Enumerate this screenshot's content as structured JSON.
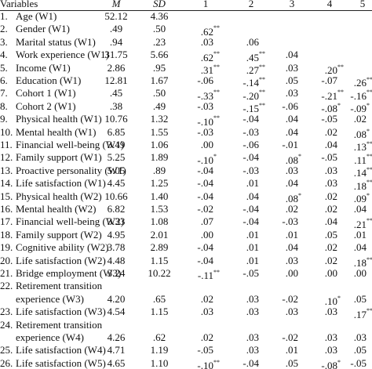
{
  "table": {
    "header": [
      "Variables",
      "M",
      "SD",
      "1",
      "2",
      "3",
      "4",
      "5"
    ],
    "rows": [
      {
        "no": "1.",
        "label": [
          "Age (W1)"
        ],
        "cells": [
          "52.12",
          "4.36"
        ],
        "corr": []
      },
      {
        "no": "2.",
        "label": [
          "Gender (W1)"
        ],
        "cells": [
          ".49",
          ".50"
        ],
        "corr": [
          {
            "v": ".62",
            "s": "**"
          }
        ]
      },
      {
        "no": "3.",
        "label": [
          "Marital status (W1)"
        ],
        "cells": [
          ".94",
          ".23"
        ],
        "corr": [
          {
            "v": ".03"
          },
          {
            "v": ".06"
          }
        ]
      },
      {
        "no": "4.",
        "label": [
          "Work experience (W1)"
        ],
        "cells": [
          "31.75",
          "5.66"
        ],
        "corr": [
          {
            "v": ".62",
            "s": "**"
          },
          {
            "v": ".45",
            "s": "**"
          },
          {
            "v": ".04"
          }
        ]
      },
      {
        "no": "5.",
        "label": [
          "Income (W1)"
        ],
        "cells": [
          "2.86",
          ".95"
        ],
        "corr": [
          {
            "v": ".31",
            "s": "**"
          },
          {
            "v": ".27",
            "s": "**"
          },
          {
            "v": ".03"
          },
          {
            "v": ".20",
            "s": "**"
          }
        ]
      },
      {
        "no": "6.",
        "label": [
          "Education (W1)"
        ],
        "cells": [
          "12.81",
          "1.67"
        ],
        "corr": [
          {
            "v": "-.06"
          },
          {
            "v": "-.14",
            "s": "**"
          },
          {
            "v": ".05"
          },
          {
            "v": "-.07"
          },
          {
            "v": ".26",
            "s": "**"
          }
        ]
      },
      {
        "no": "7.",
        "label": [
          "Cohort 1 (W1)"
        ],
        "cells": [
          ".45",
          ".50"
        ],
        "corr": [
          {
            "v": "-.33",
            "s": "**"
          },
          {
            "v": "-.20",
            "s": "**"
          },
          {
            "v": ".03"
          },
          {
            "v": "-.21",
            "s": "**"
          },
          {
            "v": "-.16",
            "s": "**"
          }
        ]
      },
      {
        "no": "8.",
        "label": [
          "Cohort 2 (W1)"
        ],
        "cells": [
          ".38",
          ".49"
        ],
        "corr": [
          {
            "v": "-.03"
          },
          {
            "v": "-.15",
            "s": "**"
          },
          {
            "v": "-.06"
          },
          {
            "v": "-.08",
            "s": "*"
          },
          {
            "v": "-.09",
            "s": "*"
          }
        ]
      },
      {
        "no": "9.",
        "label": [
          "Physical health (W1)"
        ],
        "cells": [
          "10.76",
          "1.32"
        ],
        "corr": [
          {
            "v": "-.10",
            "s": "**"
          },
          {
            "v": "-.04"
          },
          {
            "v": ".04"
          },
          {
            "v": "-.05"
          },
          {
            "v": ".02"
          }
        ]
      },
      {
        "no": "10.",
        "label": [
          "Mental health (W1)"
        ],
        "cells": [
          "6.85",
          "1.55"
        ],
        "corr": [
          {
            "v": "-.03"
          },
          {
            "v": "-.03"
          },
          {
            "v": ".04"
          },
          {
            "v": ".02"
          },
          {
            "v": ".08",
            "s": "*"
          }
        ]
      },
      {
        "no": "11.",
        "label": [
          "Financial well-being (W1)"
        ],
        "cells": [
          "3.49",
          "1.06"
        ],
        "corr": [
          {
            "v": ".00"
          },
          {
            "v": "-.06"
          },
          {
            "v": "-.01"
          },
          {
            "v": ".04"
          },
          {
            "v": ".13",
            "s": "**"
          }
        ]
      },
      {
        "no": "12.",
        "label": [
          "Family support (W1)"
        ],
        "cells": [
          "5.25",
          "1.89"
        ],
        "corr": [
          {
            "v": "-.10",
            "s": "*"
          },
          {
            "v": "-.04"
          },
          {
            "v": ".08",
            "s": "*"
          },
          {
            "v": "-.05"
          },
          {
            "v": ".11",
            "s": "**"
          }
        ]
      },
      {
        "no": "13.",
        "label": [
          "Proactive personality (W1)"
        ],
        "cells": [
          "5.05",
          ".89"
        ],
        "corr": [
          {
            "v": "-.04"
          },
          {
            "v": "-.03"
          },
          {
            "v": ".03"
          },
          {
            "v": ".03"
          },
          {
            "v": ".14",
            "s": "**"
          }
        ]
      },
      {
        "no": "14.",
        "label": [
          "Life satisfaction (W1)"
        ],
        "cells": [
          "4.45",
          "1.25"
        ],
        "corr": [
          {
            "v": "-.04"
          },
          {
            "v": ".01"
          },
          {
            "v": ".04"
          },
          {
            "v": ".03"
          },
          {
            "v": ".18",
            "s": "**"
          }
        ]
      },
      {
        "no": "15.",
        "label": [
          "Physical health (W2)"
        ],
        "cells": [
          "10.66",
          "1.40"
        ],
        "corr": [
          {
            "v": "-.04"
          },
          {
            "v": ".04"
          },
          {
            "v": ".08",
            "s": "*"
          },
          {
            "v": ".02"
          },
          {
            "v": ".09",
            "s": "*"
          }
        ]
      },
      {
        "no": "16.",
        "label": [
          "Mental health (W2)"
        ],
        "cells": [
          "6.82",
          "1.53"
        ],
        "corr": [
          {
            "v": "-.02"
          },
          {
            "v": "-.04"
          },
          {
            "v": ".02"
          },
          {
            "v": ".02"
          },
          {
            "v": ".04"
          }
        ]
      },
      {
        "no": "17.",
        "label": [
          "Financial well-being (W2)"
        ],
        "cells": [
          "3.33",
          "1.08"
        ],
        "corr": [
          {
            "v": ".07"
          },
          {
            "v": "-.04"
          },
          {
            "v": "-.03"
          },
          {
            "v": ".04"
          },
          {
            "v": ".21",
            "s": "**"
          }
        ]
      },
      {
        "no": "18.",
        "label": [
          "Family support (W2)"
        ],
        "cells": [
          "4.95",
          "2.01"
        ],
        "corr": [
          {
            "v": ".00"
          },
          {
            "v": ".01"
          },
          {
            "v": ".01"
          },
          {
            "v": ".05"
          },
          {
            "v": ".01"
          }
        ]
      },
      {
        "no": "19.",
        "label": [
          "Cognitive ability (W2)"
        ],
        "cells": [
          "3.78",
          "2.89"
        ],
        "corr": [
          {
            "v": "-.04"
          },
          {
            "v": ".01"
          },
          {
            "v": ".04"
          },
          {
            "v": ".02"
          },
          {
            "v": ".04"
          }
        ]
      },
      {
        "no": "20.",
        "label": [
          "Life satisfaction (W2)"
        ],
        "cells": [
          "4.48",
          "1.15"
        ],
        "corr": [
          {
            "v": "-.04"
          },
          {
            "v": ".01"
          },
          {
            "v": ".03"
          },
          {
            "v": ".02"
          },
          {
            "v": ".18",
            "s": "**"
          }
        ]
      },
      {
        "no": "21.",
        "label": [
          "Bridge employment (W3)"
        ],
        "cells": [
          "3.24",
          "10.22"
        ],
        "corr": [
          {
            "v": "-.11",
            "s": "**"
          },
          {
            "v": "-.05"
          },
          {
            "v": ".00"
          },
          {
            "v": ".00"
          },
          {
            "v": ".00"
          }
        ]
      },
      {
        "no": "22.",
        "label": [
          "Retirement transition",
          "experience (W3)"
        ],
        "cells": [
          "4.20",
          ".65"
        ],
        "corr": [
          {
            "v": ".02"
          },
          {
            "v": ".03"
          },
          {
            "v": "-.02"
          },
          {
            "v": ".10",
            "s": "*"
          },
          {
            "v": ".05"
          }
        ]
      },
      {
        "no": "23.",
        "label": [
          "Life satisfaction (W3)"
        ],
        "cells": [
          "4.54",
          "1.15"
        ],
        "corr": [
          {
            "v": ".03"
          },
          {
            "v": ".03"
          },
          {
            "v": ".03"
          },
          {
            "v": ".03"
          },
          {
            "v": ".17",
            "s": "**"
          }
        ]
      },
      {
        "no": "24.",
        "label": [
          "Retirement transition",
          "experience (W4)"
        ],
        "cells": [
          "4.26",
          ".62"
        ],
        "corr": [
          {
            "v": ".02"
          },
          {
            "v": ".03"
          },
          {
            "v": "-.02"
          },
          {
            "v": ".03"
          },
          {
            "v": ".03"
          }
        ]
      },
      {
        "no": "25.",
        "label": [
          "Life satisfaction (W4)"
        ],
        "cells": [
          "4.71",
          "1.19"
        ],
        "corr": [
          {
            "v": "-.05"
          },
          {
            "v": ".03"
          },
          {
            "v": ".01"
          },
          {
            "v": ".03"
          },
          {
            "v": ".05"
          }
        ]
      },
      {
        "no": "26.",
        "label": [
          "Life satisfaction (W5)"
        ],
        "cells": [
          "4.65",
          "1.10"
        ],
        "corr": [
          {
            "v": "-.10",
            "s": "**"
          },
          {
            "v": "-.04"
          },
          {
            "v": ".05"
          },
          {
            "v": "-.08",
            "s": "*"
          },
          {
            "v": "-.05"
          }
        ]
      }
    ]
  }
}
